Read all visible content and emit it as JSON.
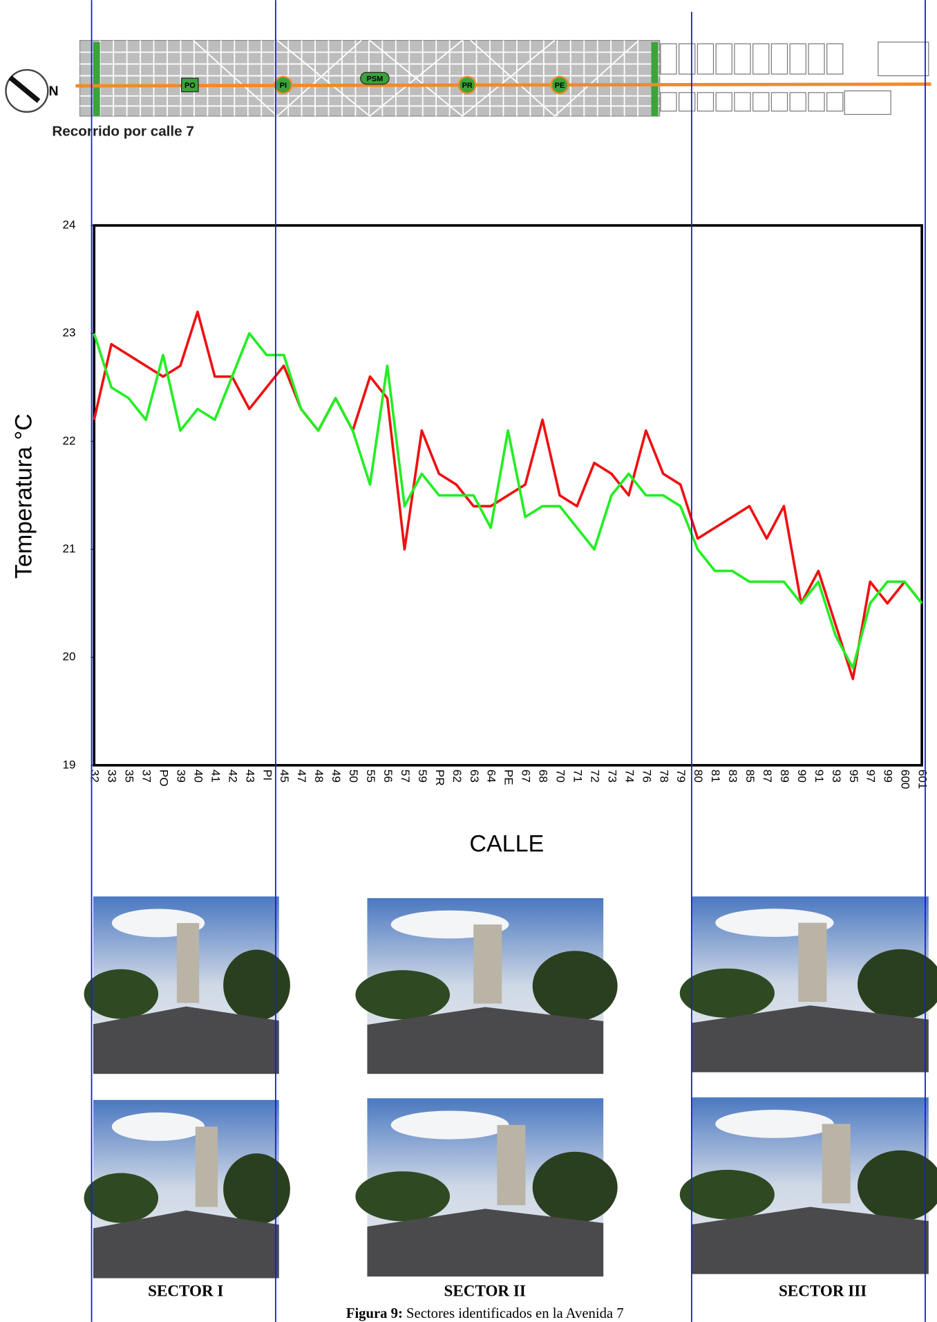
{
  "map": {
    "north": "N",
    "caption": "Recorrido por calle 7",
    "labels": [
      "PO",
      "PI",
      "PSM",
      "PR",
      "PE"
    ]
  },
  "chart_data": {
    "type": "line",
    "y_label": "Temperatura °C",
    "x_label": "CALLE",
    "categories": [
      "32",
      "33",
      "35",
      "37",
      "PO",
      "39",
      "40",
      "41",
      "42",
      "43",
      "PI",
      "45",
      "47",
      "48",
      "49",
      "50",
      "55",
      "56",
      "57",
      "59",
      "PR",
      "62",
      "63",
      "64",
      "PE",
      "67",
      "68",
      "70",
      "71",
      "72",
      "73",
      "74",
      "76",
      "78",
      "79",
      "80",
      "81",
      "83",
      "85",
      "87",
      "89",
      "90",
      "91",
      "93",
      "95",
      "97",
      "99",
      "600",
      "601"
    ],
    "series": [
      {
        "color": "#ee1111",
        "values": [
          22.2,
          22.9,
          22.8,
          22.7,
          22.6,
          22.7,
          23.2,
          22.6,
          22.6,
          22.3,
          22.5,
          22.7,
          22.3,
          22.1,
          22.4,
          22.1,
          22.6,
          22.4,
          21.0,
          22.1,
          21.7,
          21.6,
          21.4,
          21.4,
          21.5,
          21.6,
          22.2,
          21.5,
          21.4,
          21.8,
          21.7,
          21.5,
          22.1,
          21.7,
          21.6,
          21.1,
          21.2,
          21.3,
          21.4,
          21.1,
          21.4,
          20.5,
          20.8,
          20.3,
          19.8,
          20.7,
          20.5,
          20.7,
          20.5
        ]
      },
      {
        "color": "#22ee22",
        "values": [
          23.0,
          22.5,
          22.4,
          22.2,
          22.8,
          22.1,
          22.3,
          22.2,
          22.6,
          23.0,
          22.8,
          22.8,
          22.3,
          22.1,
          22.4,
          22.1,
          21.6,
          22.7,
          21.4,
          21.7,
          21.5,
          21.5,
          21.5,
          21.2,
          22.1,
          21.3,
          21.4,
          21.4,
          21.2,
          21.0,
          21.5,
          21.7,
          21.5,
          21.5,
          21.4,
          21.0,
          20.8,
          20.8,
          20.7,
          20.7,
          20.7,
          20.5,
          20.7,
          20.2,
          19.9,
          20.5,
          20.7,
          20.7,
          20.5
        ]
      }
    ],
    "ylim": [
      19,
      24
    ],
    "yticks": [
      19,
      20,
      21,
      22,
      23,
      24
    ]
  },
  "sectors": [
    "SECTOR I",
    "SECTOR II",
    "SECTOR III"
  ],
  "figure_caption": {
    "label": "Figura 9:",
    "text": "Sectores identificados en la Avenida 7"
  }
}
